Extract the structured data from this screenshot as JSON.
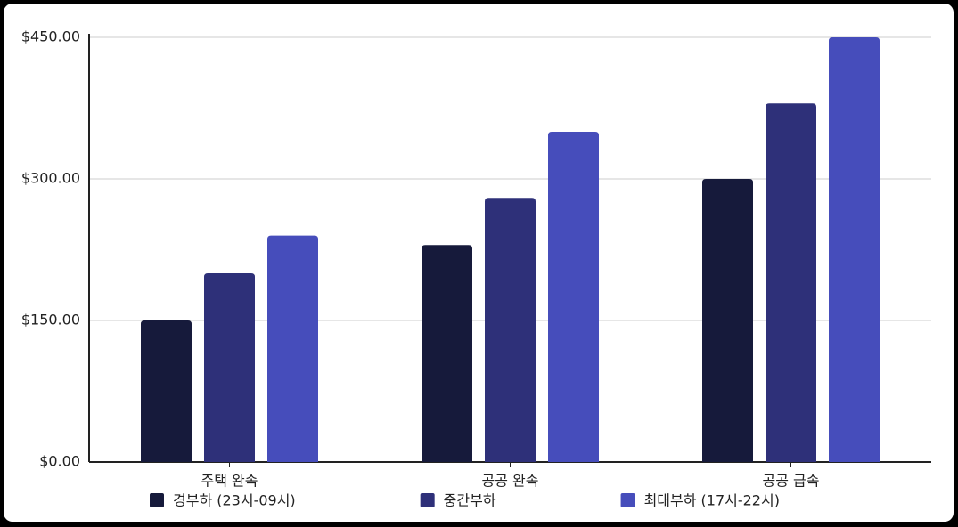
{
  "chart_data": {
    "type": "bar",
    "categories": [
      "주택 완속",
      "공공 완속",
      "공공 급속"
    ],
    "series": [
      {
        "name": "경부하 (23시-09시)",
        "color": "#161a3b",
        "values": [
          150,
          230,
          300
        ]
      },
      {
        "name": "중간부하",
        "color": "#2e3079",
        "values": [
          200,
          280,
          380
        ]
      },
      {
        "name": "최대부하 (17시-22시)",
        "color": "#464dbb",
        "values": [
          240,
          350,
          450
        ]
      }
    ],
    "ylim": [
      0,
      450
    ],
    "yticks": [
      {
        "value": 0,
        "label": "$0.00"
      },
      {
        "value": 150,
        "label": "$150.00"
      },
      {
        "value": 300,
        "label": "$300.00"
      },
      {
        "value": 450,
        "label": "$450.00"
      }
    ],
    "grid": true,
    "legend": "bottom"
  }
}
